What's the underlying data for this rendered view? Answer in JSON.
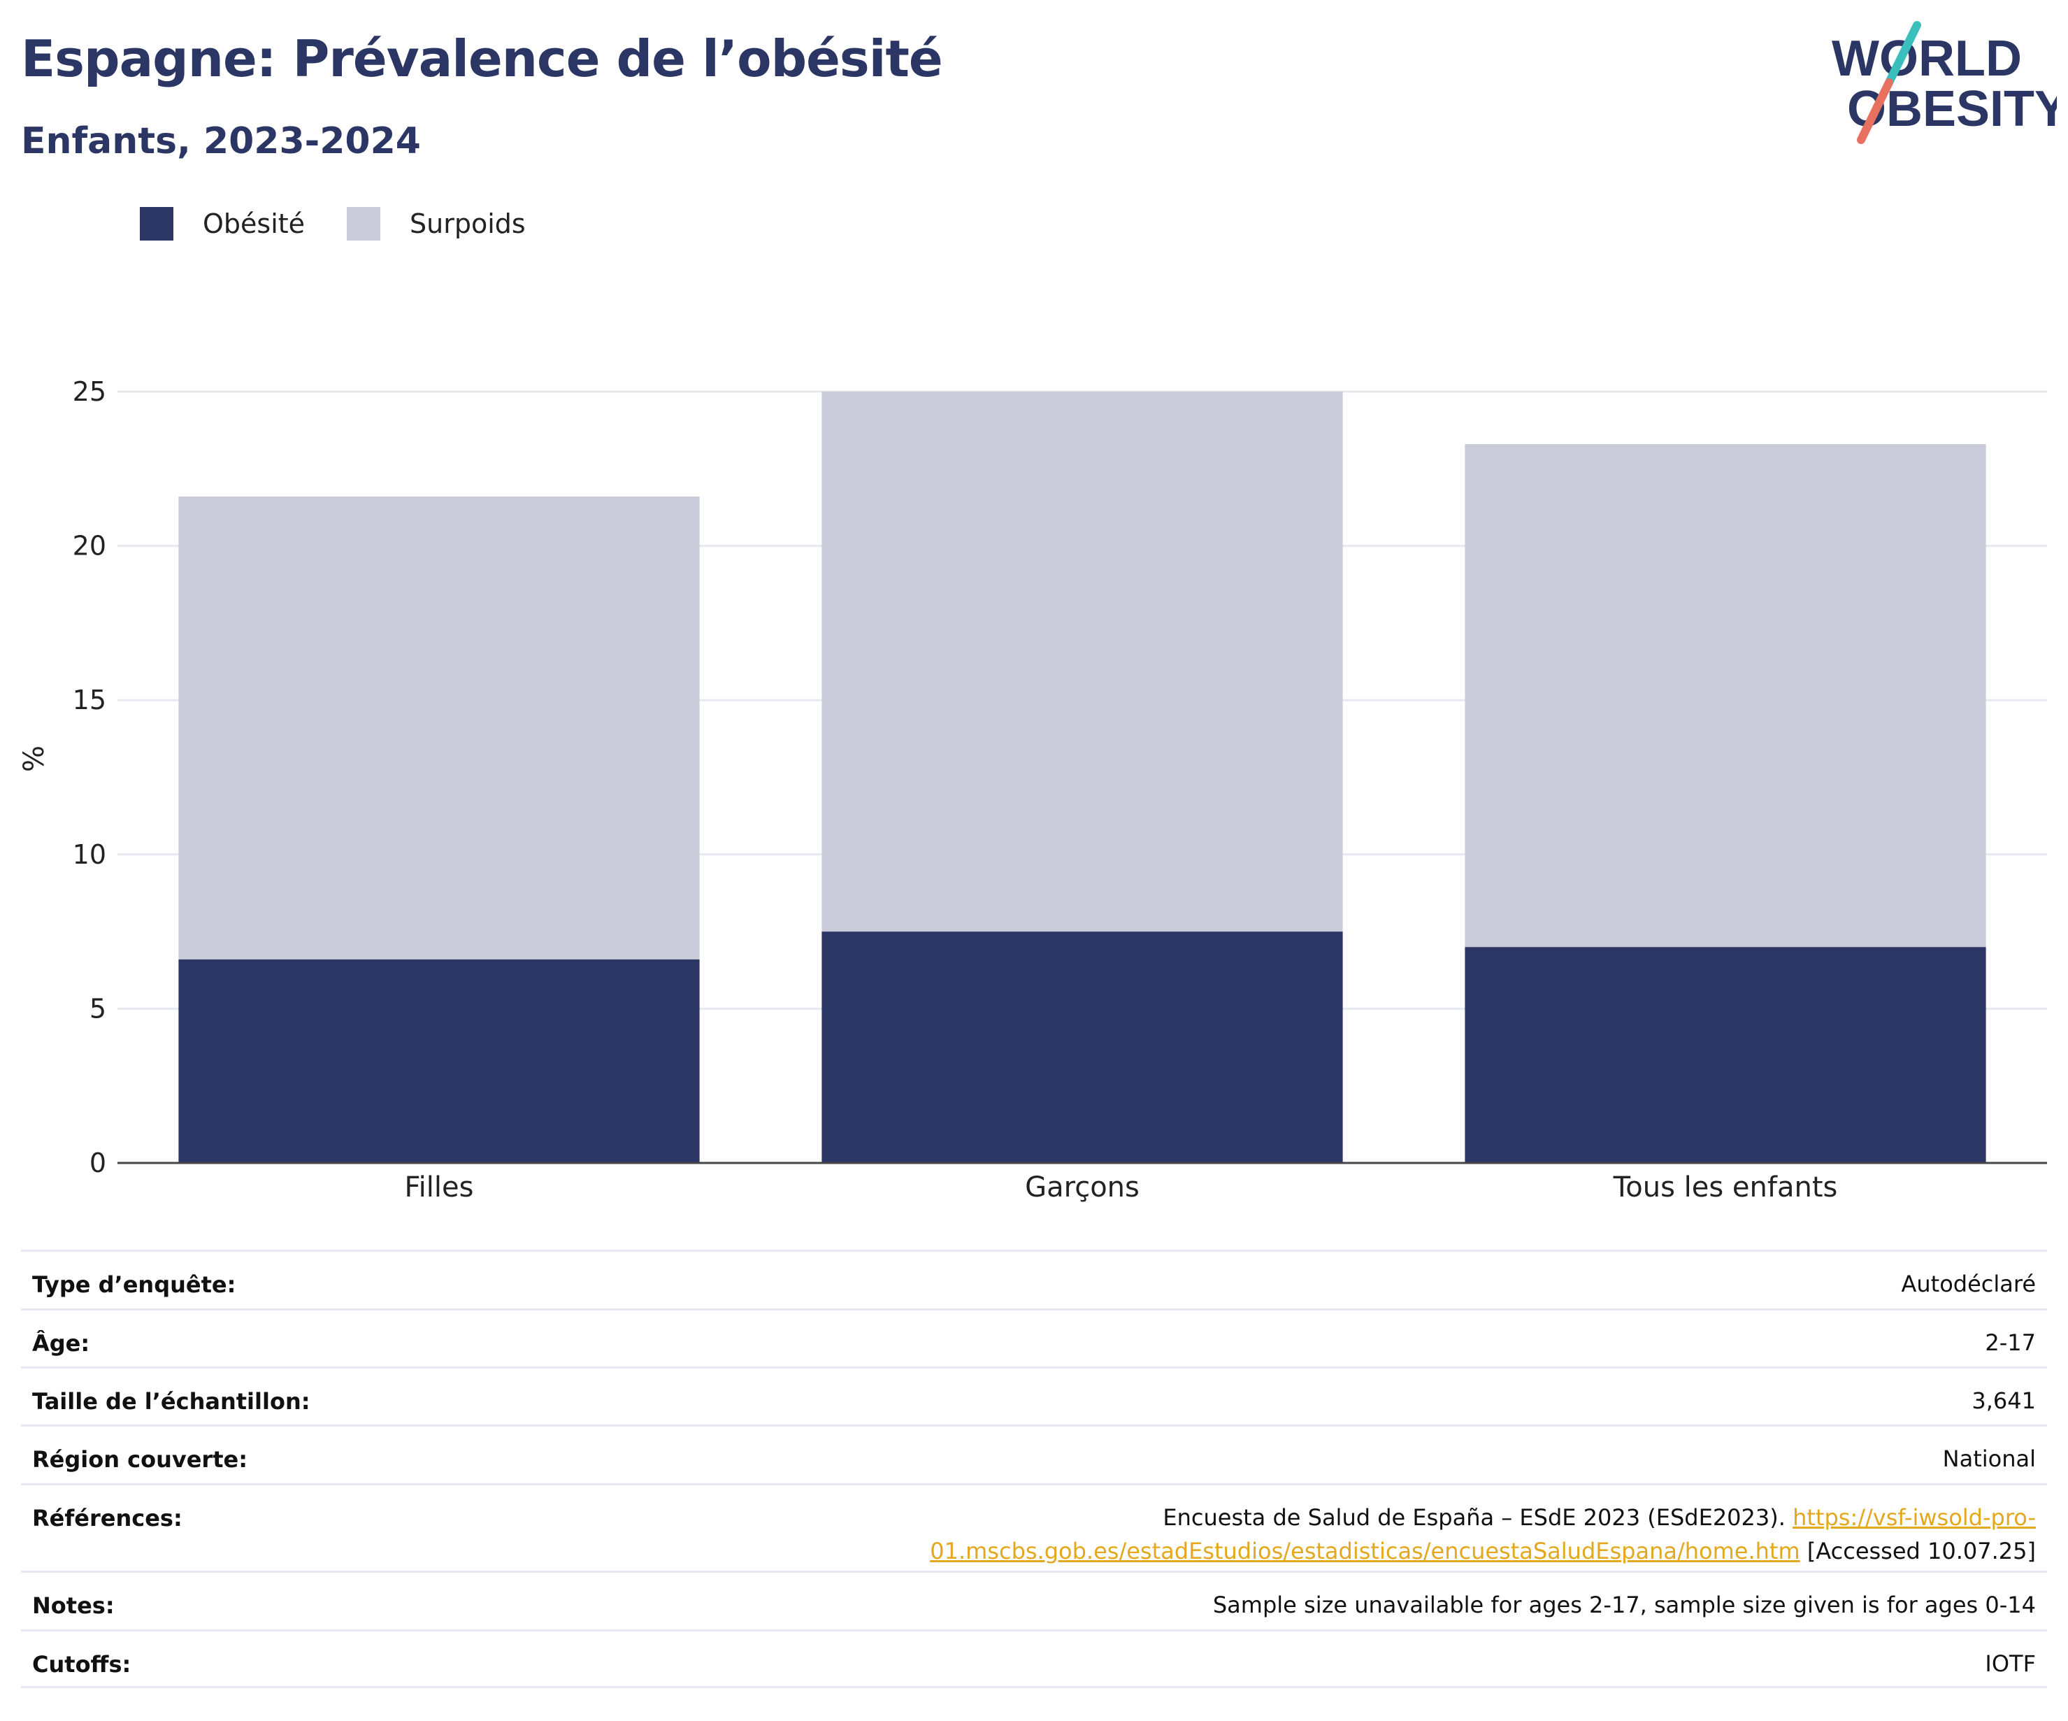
{
  "header": {
    "title": "Espagne: Prévalence de l’obésité",
    "subtitle": "Enfants, 2023-2024"
  },
  "logo": {
    "line1": "WORLD",
    "line2": "OBESITY",
    "accent_teal": "#3bbfbd",
    "accent_coral": "#e8705f"
  },
  "colors": {
    "obesity": "#2b3664",
    "overweight": "#c9ccd8",
    "text_dark": "#2b3664",
    "link": "#e3a81e"
  },
  "legend": {
    "items": [
      {
        "label": "Obésité",
        "color": "#2b3664"
      },
      {
        "label": "Surpoids",
        "color": "#c9ccd8"
      }
    ]
  },
  "chart_data": {
    "type": "bar",
    "stacked": true,
    "categories": [
      "Filles",
      "Garçons",
      "Tous les enfants"
    ],
    "series": [
      {
        "name": "Obésité",
        "values": [
          6.6,
          7.5,
          7.0
        ]
      },
      {
        "name": "Surpoids",
        "values": [
          15.0,
          17.5,
          16.3
        ]
      }
    ],
    "ylabel": "%",
    "xlabel": "",
    "ylim": [
      0,
      25
    ],
    "yticks": [
      0,
      5,
      10,
      15,
      20,
      25
    ],
    "grid": true,
    "legend_position": "top-left"
  },
  "info": [
    {
      "label": "Type d’enquête:",
      "value": "Autodéclaré"
    },
    {
      "label": "Âge:",
      "value": "2-17"
    },
    {
      "label": "Taille de l’échantillon:",
      "value": "3,641"
    },
    {
      "label": "Région couverte:",
      "value": "National"
    },
    {
      "label": "Références:",
      "value_text": "Encuesta de Salud de España – ESdE 2023 (ESdE2023). ",
      "value_link_a": "https://vsf-iwsold-pro-",
      "value_link_b": "01.mscbs.gob.es/estadEstudios/estadisticas/encuestaSaludEspana/home.htm",
      "value_suffix": " [Accessed 10.07.25]"
    },
    {
      "label": "Notes:",
      "value": "Sample size unavailable for ages 2-17, sample size given is for ages 0-14"
    },
    {
      "label": "Cutoffs:",
      "value": "IOTF"
    }
  ]
}
